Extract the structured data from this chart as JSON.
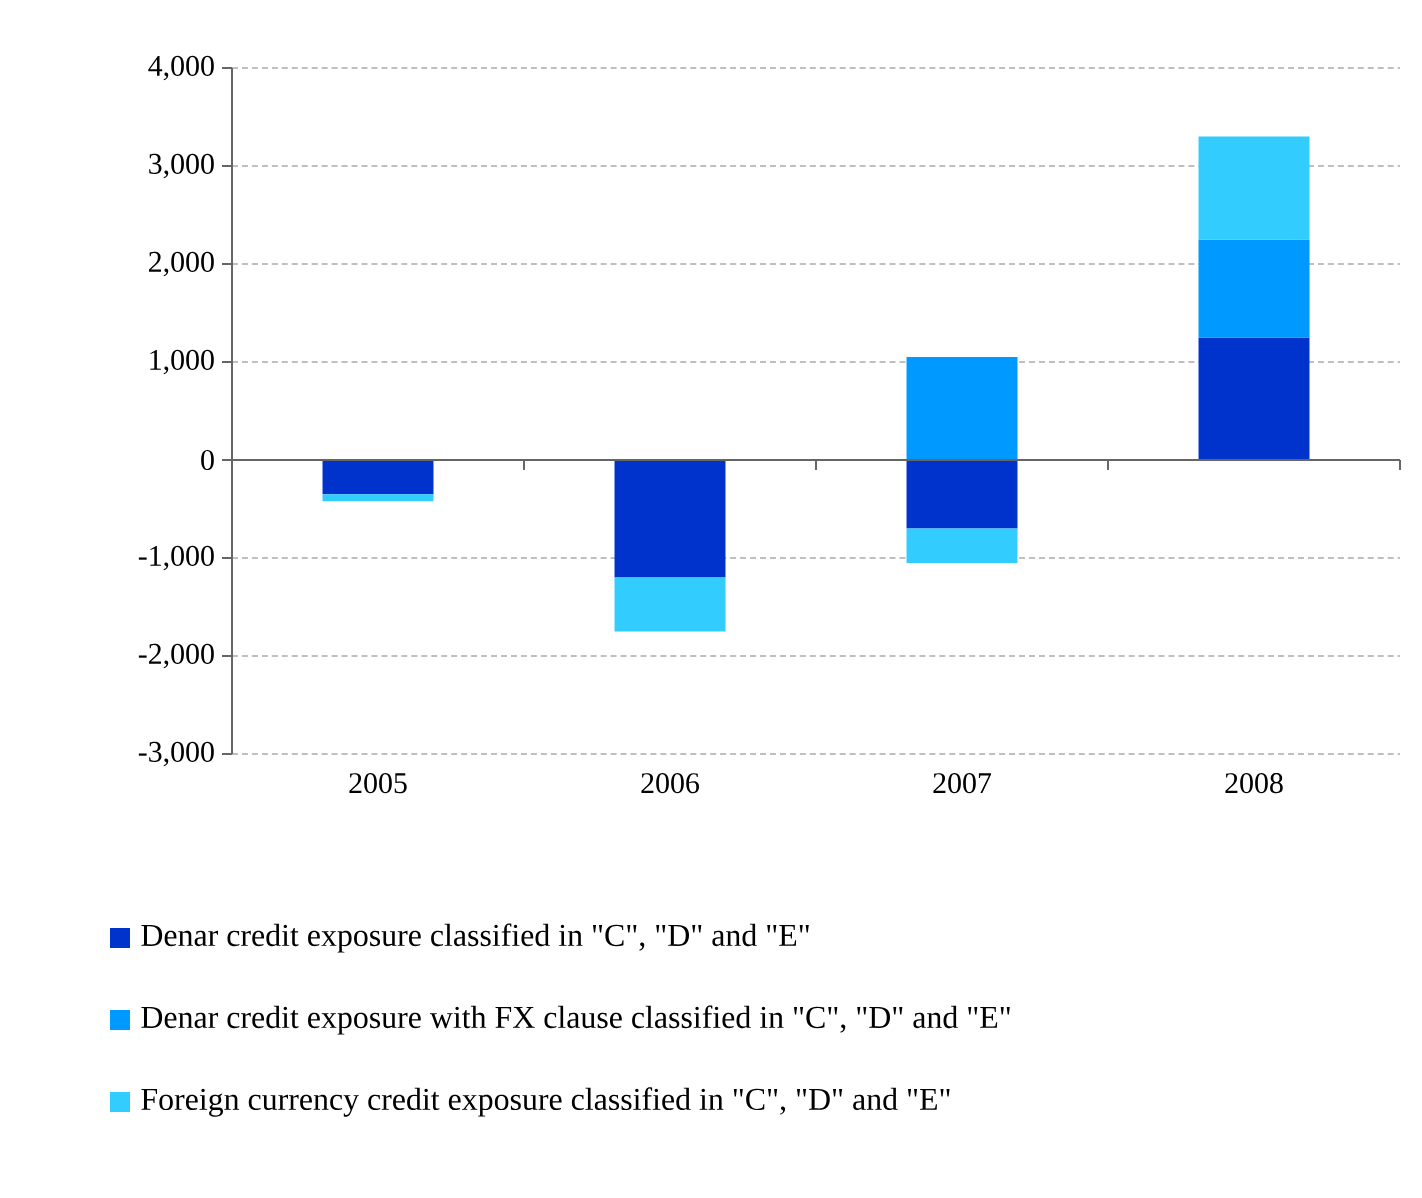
{
  "chart_data": {
    "type": "bar",
    "stacked": true,
    "categories": [
      "2005",
      "2006",
      "2007",
      "2008"
    ],
    "series": [
      {
        "name": "Denar credit exposure classified in \"C\", \"D\" and \"E\"",
        "color": "#0033cc",
        "values": [
          -350,
          -1200,
          -700,
          1250
        ]
      },
      {
        "name": "Denar credit exposure with FX clause classified in \"C\", \"D\" and \"E\"",
        "color": "#0099ff",
        "values": [
          0,
          0,
          1050,
          1000
        ]
      },
      {
        "name": "Foreign currency credit exposure classified in \"C\", \"D\" and \"E\"",
        "color": "#33ccff",
        "values": [
          -70,
          -550,
          -350,
          1050
        ]
      }
    ],
    "ylim": [
      -3000,
      4000
    ],
    "yticks": [
      {
        "value": -3000,
        "label": "-3,000"
      },
      {
        "value": -2000,
        "label": "-2,000"
      },
      {
        "value": -1000,
        "label": "-1,000"
      },
      0,
      {
        "value": 1000,
        "label": "1,000"
      },
      {
        "value": 2000,
        "label": "2,000"
      },
      {
        "value": 3000,
        "label": "3,000"
      },
      {
        "value": 4000,
        "label": "4,000"
      }
    ],
    "grid": "y",
    "legend": "bottom"
  }
}
